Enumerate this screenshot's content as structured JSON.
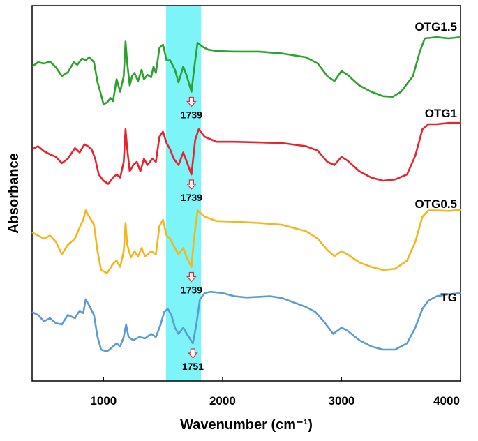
{
  "chart_data": {
    "type": "line",
    "xlabel": "Wavenumber (cm⁻¹)",
    "ylabel": "Absorbance",
    "xlim": [
      400,
      4000
    ],
    "xticks": [
      1000,
      2000,
      3000,
      4000
    ],
    "highlight_band": {
      "from": 1525,
      "to": 1820,
      "color": "#7df4f8"
    },
    "series": [
      {
        "name": "OTG1.5",
        "color": "#2ca12c",
        "offset": 3,
        "annotation": "1739",
        "annotation_x": 1739,
        "points": [
          [
            400,
            0.45
          ],
          [
            450,
            0.52
          ],
          [
            500,
            0.5
          ],
          [
            550,
            0.53
          ],
          [
            600,
            0.44
          ],
          [
            650,
            0.3
          ],
          [
            700,
            0.36
          ],
          [
            750,
            0.52
          ],
          [
            780,
            0.48
          ],
          [
            820,
            0.58
          ],
          [
            850,
            0.55
          ],
          [
            880,
            0.6
          ],
          [
            920,
            0.52
          ],
          [
            950,
            0.2
          ],
          [
            980,
            0.0
          ],
          [
            1000,
            -0.15
          ],
          [
            1030,
            -0.12
          ],
          [
            1060,
            -0.05
          ],
          [
            1080,
            -0.1
          ],
          [
            1110,
            0.25
          ],
          [
            1140,
            0.05
          ],
          [
            1170,
            0.3
          ],
          [
            1185,
            0.85
          ],
          [
            1200,
            0.5
          ],
          [
            1220,
            0.15
          ],
          [
            1240,
            0.3
          ],
          [
            1260,
            0.35
          ],
          [
            1290,
            0.22
          ],
          [
            1320,
            0.4
          ],
          [
            1340,
            0.25
          ],
          [
            1370,
            0.32
          ],
          [
            1400,
            0.28
          ],
          [
            1420,
            0.45
          ],
          [
            1440,
            0.35
          ],
          [
            1470,
            0.75
          ],
          [
            1500,
            0.8
          ],
          [
            1530,
            0.55
          ],
          [
            1560,
            0.55
          ],
          [
            1600,
            0.4
          ],
          [
            1630,
            0.2
          ],
          [
            1670,
            0.45
          ],
          [
            1700,
            0.3
          ],
          [
            1739,
            0.05
          ],
          [
            1760,
            0.4
          ],
          [
            1790,
            0.83
          ],
          [
            1830,
            0.77
          ],
          [
            1880,
            0.72
          ],
          [
            1950,
            0.7
          ],
          [
            2100,
            0.69
          ],
          [
            2300,
            0.69
          ],
          [
            2500,
            0.66
          ],
          [
            2700,
            0.6
          ],
          [
            2800,
            0.5
          ],
          [
            2880,
            0.3
          ],
          [
            2940,
            0.22
          ],
          [
            3000,
            0.38
          ],
          [
            3050,
            0.32
          ],
          [
            3150,
            0.15
          ],
          [
            3250,
            0.05
          ],
          [
            3350,
            -0.02
          ],
          [
            3430,
            -0.03
          ],
          [
            3500,
            0.05
          ],
          [
            3600,
            0.3
          ],
          [
            3660,
            0.7
          ],
          [
            3700,
            0.9
          ],
          [
            3800,
            0.92
          ],
          [
            3900,
            0.9
          ],
          [
            4000,
            0.92
          ]
        ]
      },
      {
        "name": "OTG1",
        "color": "#e8232e",
        "offset": 2,
        "annotation": "1739",
        "annotation_x": 1739,
        "points": [
          [
            400,
            0.5
          ],
          [
            450,
            0.55
          ],
          [
            500,
            0.47
          ],
          [
            550,
            0.42
          ],
          [
            600,
            0.38
          ],
          [
            650,
            0.28
          ],
          [
            700,
            0.35
          ],
          [
            760,
            0.52
          ],
          [
            800,
            0.45
          ],
          [
            840,
            0.58
          ],
          [
            870,
            0.55
          ],
          [
            900,
            0.5
          ],
          [
            930,
            0.35
          ],
          [
            960,
            0.1
          ],
          [
            1000,
            0.0
          ],
          [
            1040,
            -0.05
          ],
          [
            1080,
            0.05
          ],
          [
            1110,
            0.1
          ],
          [
            1140,
            0.05
          ],
          [
            1170,
            0.3
          ],
          [
            1185,
            0.82
          ],
          [
            1200,
            0.5
          ],
          [
            1220,
            0.15
          ],
          [
            1250,
            0.25
          ],
          [
            1280,
            0.3
          ],
          [
            1310,
            0.15
          ],
          [
            1340,
            0.35
          ],
          [
            1370,
            0.25
          ],
          [
            1410,
            0.35
          ],
          [
            1440,
            0.3
          ],
          [
            1470,
            0.7
          ],
          [
            1500,
            0.78
          ],
          [
            1530,
            0.6
          ],
          [
            1560,
            0.5
          ],
          [
            1590,
            0.35
          ],
          [
            1630,
            0.25
          ],
          [
            1670,
            0.45
          ],
          [
            1700,
            0.3
          ],
          [
            1739,
            0.1
          ],
          [
            1770,
            0.65
          ],
          [
            1800,
            0.82
          ],
          [
            1850,
            0.7
          ],
          [
            1950,
            0.62
          ],
          [
            2100,
            0.62
          ],
          [
            2300,
            0.61
          ],
          [
            2500,
            0.6
          ],
          [
            2700,
            0.55
          ],
          [
            2800,
            0.48
          ],
          [
            2880,
            0.3
          ],
          [
            2940,
            0.25
          ],
          [
            3000,
            0.38
          ],
          [
            3050,
            0.32
          ],
          [
            3150,
            0.15
          ],
          [
            3250,
            0.05
          ],
          [
            3350,
            0.0
          ],
          [
            3450,
            0.02
          ],
          [
            3550,
            0.1
          ],
          [
            3620,
            0.4
          ],
          [
            3680,
            0.82
          ],
          [
            3730,
            0.9
          ],
          [
            3800,
            0.9
          ],
          [
            3900,
            0.92
          ],
          [
            4000,
            0.92
          ]
        ]
      },
      {
        "name": "OTG0.5",
        "color": "#f5b61c",
        "offset": 1,
        "annotation": "1739",
        "annotation_x": 1739,
        "points": [
          [
            400,
            0.6
          ],
          [
            450,
            0.55
          ],
          [
            500,
            0.5
          ],
          [
            550,
            0.55
          ],
          [
            600,
            0.45
          ],
          [
            650,
            0.25
          ],
          [
            700,
            0.4
          ],
          [
            760,
            0.5
          ],
          [
            800,
            0.68
          ],
          [
            830,
            0.8
          ],
          [
            850,
            0.95
          ],
          [
            880,
            0.85
          ],
          [
            920,
            0.72
          ],
          [
            950,
            0.3
          ],
          [
            980,
            0.0
          ],
          [
            1030,
            -0.05
          ],
          [
            1080,
            0.1
          ],
          [
            1110,
            0.15
          ],
          [
            1140,
            0.05
          ],
          [
            1170,
            0.3
          ],
          [
            1185,
            0.75
          ],
          [
            1200,
            0.4
          ],
          [
            1230,
            0.2
          ],
          [
            1260,
            0.3
          ],
          [
            1290,
            0.22
          ],
          [
            1320,
            0.35
          ],
          [
            1350,
            0.22
          ],
          [
            1400,
            0.3
          ],
          [
            1440,
            0.25
          ],
          [
            1470,
            0.7
          ],
          [
            1500,
            0.8
          ],
          [
            1530,
            0.55
          ],
          [
            1560,
            0.5
          ],
          [
            1600,
            0.35
          ],
          [
            1630,
            0.25
          ],
          [
            1670,
            0.35
          ],
          [
            1700,
            0.2
          ],
          [
            1739,
            0.05
          ],
          [
            1760,
            0.5
          ],
          [
            1790,
            0.95
          ],
          [
            1850,
            0.85
          ],
          [
            1950,
            0.78
          ],
          [
            2100,
            0.77
          ],
          [
            2300,
            0.75
          ],
          [
            2500,
            0.72
          ],
          [
            2700,
            0.62
          ],
          [
            2800,
            0.5
          ],
          [
            2880,
            0.32
          ],
          [
            2940,
            0.22
          ],
          [
            3000,
            0.3
          ],
          [
            3050,
            0.25
          ],
          [
            3150,
            0.12
          ],
          [
            3250,
            0.05
          ],
          [
            3350,
            0.0
          ],
          [
            3450,
            0.02
          ],
          [
            3550,
            0.15
          ],
          [
            3620,
            0.45
          ],
          [
            3680,
            0.85
          ],
          [
            3730,
            0.95
          ],
          [
            3800,
            0.95
          ],
          [
            3900,
            0.94
          ],
          [
            4000,
            0.96
          ]
        ]
      },
      {
        "name": "TG",
        "color": "#5b9bd5",
        "offset": 0,
        "annotation": "1751",
        "annotation_x": 1751,
        "points": [
          [
            400,
            0.6
          ],
          [
            450,
            0.55
          ],
          [
            500,
            0.45
          ],
          [
            550,
            0.5
          ],
          [
            600,
            0.42
          ],
          [
            650,
            0.4
          ],
          [
            700,
            0.55
          ],
          [
            760,
            0.5
          ],
          [
            800,
            0.62
          ],
          [
            830,
            0.58
          ],
          [
            850,
            0.8
          ],
          [
            880,
            0.7
          ],
          [
            920,
            0.55
          ],
          [
            950,
            0.2
          ],
          [
            980,
            0.0
          ],
          [
            1030,
            -0.03
          ],
          [
            1080,
            0.05
          ],
          [
            1110,
            0.1
          ],
          [
            1140,
            0.05
          ],
          [
            1170,
            0.2
          ],
          [
            1190,
            0.4
          ],
          [
            1210,
            0.2
          ],
          [
            1250,
            0.15
          ],
          [
            1300,
            0.2
          ],
          [
            1350,
            0.18
          ],
          [
            1400,
            0.25
          ],
          [
            1440,
            0.2
          ],
          [
            1480,
            0.4
          ],
          [
            1510,
            0.6
          ],
          [
            1540,
            0.65
          ],
          [
            1570,
            0.55
          ],
          [
            1600,
            0.35
          ],
          [
            1630,
            0.25
          ],
          [
            1670,
            0.35
          ],
          [
            1700,
            0.25
          ],
          [
            1751,
            0.1
          ],
          [
            1780,
            0.4
          ],
          [
            1810,
            0.8
          ],
          [
            1850,
            0.9
          ],
          [
            1900,
            0.92
          ],
          [
            2000,
            0.9
          ],
          [
            2100,
            0.85
          ],
          [
            2200,
            0.83
          ],
          [
            2400,
            0.85
          ],
          [
            2500,
            0.82
          ],
          [
            2600,
            0.75
          ],
          [
            2700,
            0.68
          ],
          [
            2780,
            0.6
          ],
          [
            2850,
            0.45
          ],
          [
            2930,
            0.25
          ],
          [
            3000,
            0.35
          ],
          [
            3050,
            0.3
          ],
          [
            3150,
            0.15
          ],
          [
            3250,
            0.05
          ],
          [
            3350,
            0.0
          ],
          [
            3450,
            0.0
          ],
          [
            3550,
            0.1
          ],
          [
            3620,
            0.35
          ],
          [
            3680,
            0.65
          ],
          [
            3730,
            0.78
          ],
          [
            3800,
            0.85
          ],
          [
            3900,
            0.88
          ],
          [
            4000,
            0.9
          ]
        ]
      }
    ]
  }
}
